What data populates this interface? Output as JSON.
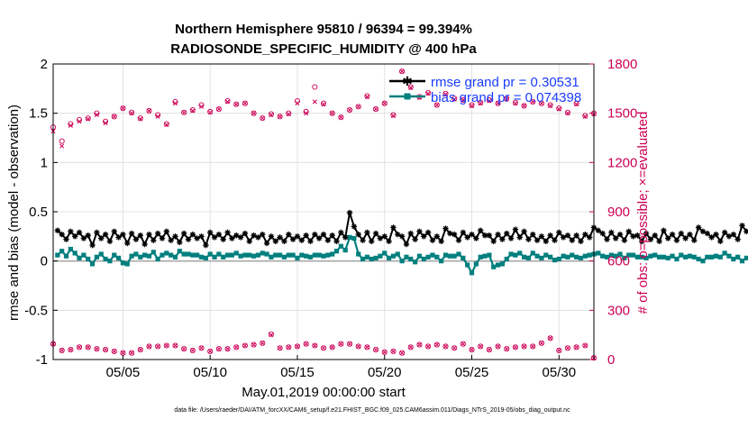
{
  "chart_data": {
    "type": "line",
    "title_line1": "Northern Hemisphere 95810 / 96394 = 99.394%",
    "title_line2": "RADIOSONDE_SPECIFIC_HUMIDITY @ 400 hPa",
    "xlabel": "May.01,2019 00:00:00 start",
    "ylabel_left": "rmse and bias (model - observation)",
    "ylabel_right": "# of obs: o=possible; ×=evaluated",
    "xlim": [
      1,
      32
    ],
    "ylim_left": [
      -1,
      2
    ],
    "ylim_right": [
      0,
      1800
    ],
    "x_ticks": [
      5,
      10,
      15,
      20,
      25,
      30
    ],
    "x_tick_labels": [
      "05/05",
      "05/10",
      "05/15",
      "05/20",
      "05/25",
      "05/30"
    ],
    "y_ticks_left": [
      "-1",
      "-0.5",
      "0",
      "0.5",
      "1",
      "1.5",
      "2"
    ],
    "y_ticks_right": [
      "0",
      "300",
      "600",
      "900",
      "1200",
      "1500",
      "1800"
    ],
    "grid": true,
    "legend_position": "top-right",
    "footnote": "data file: /Users/raeder/DAI/ATM_forcXX/CAM6_setup/f.e21.FHIST_BGC.f09_025.CAM6assim.011/Diags_NTrS_2019-05/obs_diag_output.nc",
    "series": [
      {
        "name": "rmse grand pr = 0.30531",
        "color": "#000000",
        "marker": "star",
        "x_start": 1.25,
        "x_step": 0.25,
        "values": [
          0.31,
          0.27,
          0.22,
          0.3,
          0.25,
          0.29,
          0.23,
          0.26,
          0.16,
          0.29,
          0.23,
          0.27,
          0.2,
          0.3,
          0.24,
          0.27,
          0.18,
          0.28,
          0.22,
          0.26,
          0.17,
          0.27,
          0.21,
          0.28,
          0.23,
          0.3,
          0.21,
          0.25,
          0.19,
          0.28,
          0.22,
          0.27,
          0.23,
          0.25,
          0.16,
          0.29,
          0.24,
          0.27,
          0.22,
          0.29,
          0.23,
          0.26,
          0.24,
          0.28,
          0.2,
          0.26,
          0.24,
          0.27,
          0.18,
          0.25,
          0.2,
          0.24,
          0.2,
          0.27,
          0.22,
          0.25,
          0.21,
          0.26,
          0.2,
          0.27,
          0.23,
          0.27,
          0.21,
          0.26,
          0.2,
          0.29,
          0.24,
          0.49,
          0.35,
          0.27,
          0.21,
          0.29,
          0.2,
          0.28,
          0.23,
          0.25,
          0.2,
          0.34,
          0.27,
          0.25,
          0.17,
          0.28,
          0.22,
          0.3,
          0.25,
          0.29,
          0.21,
          0.25,
          0.2,
          0.33,
          0.28,
          0.27,
          0.21,
          0.29,
          0.24,
          0.27,
          0.23,
          0.31,
          0.26,
          0.26,
          0.2,
          0.27,
          0.22,
          0.28,
          0.23,
          0.32,
          0.24,
          0.3,
          0.22,
          0.27,
          0.21,
          0.25,
          0.2,
          0.26,
          0.21,
          0.29,
          0.24,
          0.26,
          0.21,
          0.26,
          0.2,
          0.27,
          0.24,
          0.34,
          0.31,
          0.28,
          0.22,
          0.29,
          0.23,
          0.27,
          0.21,
          0.3,
          0.25,
          0.26,
          0.2,
          0.28,
          0.22,
          0.26,
          0.2,
          0.31,
          0.23,
          0.27,
          0.21,
          0.28,
          0.23,
          0.27,
          0.21,
          0.34,
          0.3,
          0.28,
          0.24,
          0.27,
          0.2,
          0.29,
          0.25,
          0.27,
          0.22,
          0.36,
          0.3,
          0.28,
          0.25,
          0.29,
          0.24,
          0.33,
          0.28,
          0.34,
          0.28,
          0.35,
          0.27,
          0.38,
          0.29,
          0.36,
          0.3,
          0.42,
          0.34,
          0.4,
          0.35,
          0.43,
          0.37,
          0.36,
          0.28,
          0.33,
          0.27,
          0.33,
          0.26,
          0.3,
          0.24,
          0.36,
          0.29,
          0.32,
          0.28,
          0.28,
          0.22,
          0.32,
          0.26,
          0.32,
          0.21,
          0.3,
          0.25,
          0.35,
          0.26,
          0.28,
          0.22,
          0.3,
          0.24,
          0.32,
          0.29,
          0.3,
          0.26,
          0.27,
          0.24,
          0.28,
          0.24,
          0.28,
          0.24,
          0.27,
          0.2,
          0.23,
          0.2,
          0.24,
          0.2,
          0.23,
          0.2,
          0.23,
          0.2,
          0.22,
          0.2,
          0.22,
          0.2,
          0.23,
          0.2,
          0.23,
          0.2,
          0.22
        ]
      },
      {
        "name": "bias grand pr = 0.074398",
        "color": "#007f7f",
        "marker": "square",
        "x_start": 1.25,
        "x_step": 0.25,
        "values": [
          0.06,
          0.1,
          0.05,
          0.12,
          0.08,
          0.03,
          0.06,
          0.02,
          -0.03,
          0.04,
          0.07,
          0.02,
          0.0,
          0.06,
          0.03,
          -0.02,
          -0.03,
          0.05,
          0.07,
          0.04,
          0.06,
          0.05,
          0.09,
          0.02,
          0.06,
          0.08,
          0.06,
          0.04,
          0.1,
          0.07,
          0.07,
          0.06,
          0.06,
          0.04,
          0.03,
          0.07,
          0.04,
          0.07,
          0.04,
          0.06,
          0.06,
          0.08,
          0.05,
          0.06,
          0.06,
          0.05,
          0.06,
          0.08,
          0.07,
          0.04,
          0.06,
          0.06,
          0.04,
          0.06,
          0.06,
          0.03,
          0.06,
          0.05,
          0.04,
          0.06,
          0.06,
          0.05,
          0.06,
          0.07,
          0.1,
          0.15,
          0.11,
          0.24,
          0.23,
          0.07,
          0.02,
          0.04,
          0.02,
          0.03,
          0.05,
          0.08,
          0.03,
          0.05,
          0.07,
          0.0,
          0.04,
          0.02,
          -0.01,
          0.05,
          0.02,
          0.04,
          0.06,
          0.04,
          0.0,
          0.06,
          0.05,
          0.05,
          0.07,
          0.03,
          -0.04,
          -0.12,
          -0.03,
          0.04,
          0.05,
          0.06,
          -0.06,
          -0.04,
          -0.03,
          0.02,
          0.07,
          0.06,
          0.08,
          0.04,
          0.03,
          0.08,
          0.05,
          0.03,
          0.06,
          0.04,
          0.01,
          0.02,
          0.05,
          0.04,
          0.06,
          0.04,
          0.03,
          0.05,
          0.06,
          0.07,
          0.08,
          0.05,
          0.04,
          0.06,
          0.05,
          0.07,
          0.03,
          0.06,
          0.06,
          0.04,
          0.04,
          0.03,
          0.05,
          0.06,
          0.04,
          0.04,
          0.03,
          0.05,
          0.02,
          0.06,
          0.04,
          0.05,
          0.04,
          0.02,
          0.0,
          0.04,
          0.04,
          0.05,
          0.04,
          0.08,
          0.05,
          0.02,
          0.04,
          0.0,
          0.03,
          0.03,
          0.05,
          0.07,
          0.08,
          0.05,
          0.07,
          0.09,
          0.08,
          0.06,
          0.06,
          0.06,
          0.1,
          0.08,
          0.03,
          0.04,
          0.01,
          0.03,
          -0.01,
          0.0,
          -0.02,
          0.03,
          0.04,
          0.09,
          0.06,
          0.06,
          0.05,
          0.09,
          0.08,
          0.13,
          0.09,
          0.09,
          0.06,
          0.06,
          0.06,
          0.05,
          0.04,
          0.06,
          0.06,
          0.07,
          0.04,
          0.04,
          0.03,
          0.06,
          0.06,
          0.06,
          0.04,
          0.07,
          0.05,
          0.05,
          0.07,
          0.05,
          0.08,
          0.06,
          0.06,
          0.03,
          0.09,
          0.05,
          0.04,
          0.04,
          0.04,
          0.05,
          0.06,
          0.08,
          0.04,
          0.06,
          0.08,
          0.07,
          0.05,
          0.08,
          0.05,
          0.05,
          0.06,
          0.09,
          0.09,
          0.06
        ]
      },
      {
        "name": "obs possible",
        "axis": "right",
        "color": "#cc0055",
        "marker": "circle",
        "x_start": 1,
        "x_step": 0.5,
        "high_values": [
          1415,
          1330,
          1435,
          1460,
          1470,
          1500,
          1450,
          1480,
          1530,
          1505,
          1470,
          1515,
          1490,
          1435,
          1570,
          1505,
          1520,
          1550,
          1510,
          1525,
          1575,
          1555,
          1560,
          1500,
          1470,
          1495,
          1480,
          1500,
          1575,
          1510,
          1660,
          1560,
          1500,
          1475,
          1520,
          1540,
          1605,
          1525,
          1560,
          1490,
          1755,
          1660,
          1600,
          1625,
          1550,
          1620,
          1590,
          1580,
          1550,
          1565,
          1580,
          1560,
          1590,
          1565,
          1545,
          1570,
          1560,
          1550,
          1530,
          1505,
          1560,
          1485,
          1500
        ],
        "low_values": [
          95,
          55,
          60,
          75,
          75,
          65,
          60,
          50,
          40,
          40,
          60,
          80,
          80,
          85,
          85,
          65,
          55,
          70,
          50,
          65,
          65,
          75,
          85,
          90,
          100,
          155,
          70,
          75,
          80,
          95,
          85,
          70,
          75,
          95,
          95,
          80,
          75,
          60,
          45,
          50,
          40,
          75,
          90,
          80,
          90,
          80,
          70,
          95,
          60,
          80,
          60,
          80,
          65,
          75,
          80,
          80,
          100,
          130,
          55,
          70,
          75,
          85,
          10
        ]
      },
      {
        "name": "obs evaluated",
        "axis": "right",
        "color": "#cc0055",
        "marker": "x",
        "x_start": 1,
        "x_step": 0.5,
        "high_values": [
          1390,
          1300,
          1425,
          1450,
          1465,
          1490,
          1440,
          1480,
          1530,
          1500,
          1465,
          1515,
          1480,
          1430,
          1560,
          1505,
          1515,
          1540,
          1505,
          1525,
          1570,
          1555,
          1560,
          1500,
          1470,
          1490,
          1480,
          1495,
          1560,
          1500,
          1570,
          1555,
          1500,
          1475,
          1520,
          1540,
          1600,
          1525,
          1560,
          1485,
          1755,
          1655,
          1595,
          1620,
          1550,
          1615,
          1585,
          1580,
          1545,
          1560,
          1575,
          1560,
          1585,
          1560,
          1545,
          1570,
          1560,
          1545,
          1525,
          1500,
          1555,
          1480,
          1495
        ],
        "low_values": [
          95,
          55,
          60,
          75,
          75,
          65,
          60,
          50,
          40,
          40,
          60,
          80,
          80,
          85,
          85,
          65,
          55,
          70,
          50,
          65,
          65,
          75,
          85,
          90,
          100,
          150,
          70,
          75,
          80,
          95,
          85,
          70,
          75,
          95,
          95,
          80,
          75,
          60,
          45,
          50,
          40,
          75,
          90,
          80,
          90,
          80,
          70,
          95,
          60,
          80,
          60,
          80,
          65,
          75,
          80,
          80,
          100,
          130,
          55,
          70,
          75,
          85,
          10
        ]
      }
    ]
  }
}
